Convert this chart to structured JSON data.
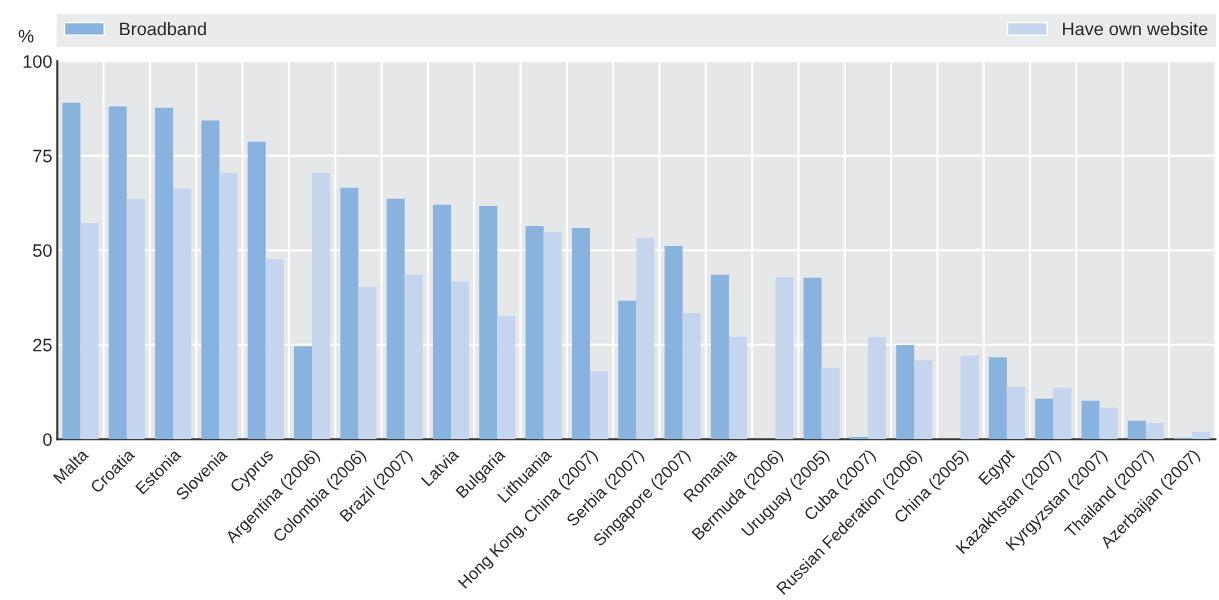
{
  "chart_data": {
    "type": "bar",
    "ylabel": "%",
    "categories": [
      "Malta",
      "Croatia",
      "Estonia",
      "Slovenia",
      "Cyprus",
      "Argentina (2006)",
      "Colombia (2006)",
      "Brazil (2007)",
      "Latvia",
      "Bulgaria",
      "Lithuania",
      "Hong Kong, China (2007)",
      "Serbia (2007)",
      "Singapore (2007)",
      "Romania",
      "Bermuda (2006)",
      "Uruguay (2005)",
      "Cuba (2007)",
      "Russian Federation (2006)",
      "China (2005)",
      "Egypt",
      "Kazakhstan (2007)",
      "Kyrgyzstan (2007)",
      "Thailand (2007)",
      "Azerbaijan (2007)"
    ],
    "series": [
      {
        "name": "Broadband",
        "color": "#89b3df",
        "values": [
          89.0,
          88.0,
          87.7,
          84.3,
          78.7,
          24.6,
          66.5,
          63.6,
          62.0,
          61.7,
          56.4,
          55.9,
          36.6,
          51.1,
          43.5,
          null,
          42.7,
          0.6,
          24.9,
          null,
          21.7,
          10.7,
          10.2,
          4.9,
          0.4
        ]
      },
      {
        "name": "Have own website",
        "color": "#c6d5ee",
        "values": [
          57.2,
          63.6,
          66.3,
          70.5,
          47.6,
          70.5,
          40.3,
          43.5,
          41.7,
          32.6,
          54.9,
          18.0,
          53.3,
          33.4,
          27.1,
          42.9,
          18.9,
          27.0,
          20.9,
          22.1,
          13.9,
          13.6,
          8.3,
          4.3,
          1.9
        ]
      }
    ],
    "ylim": [
      0,
      100
    ],
    "yticks": [
      0,
      25,
      50,
      75,
      100
    ],
    "grid": true,
    "legend": "top"
  }
}
